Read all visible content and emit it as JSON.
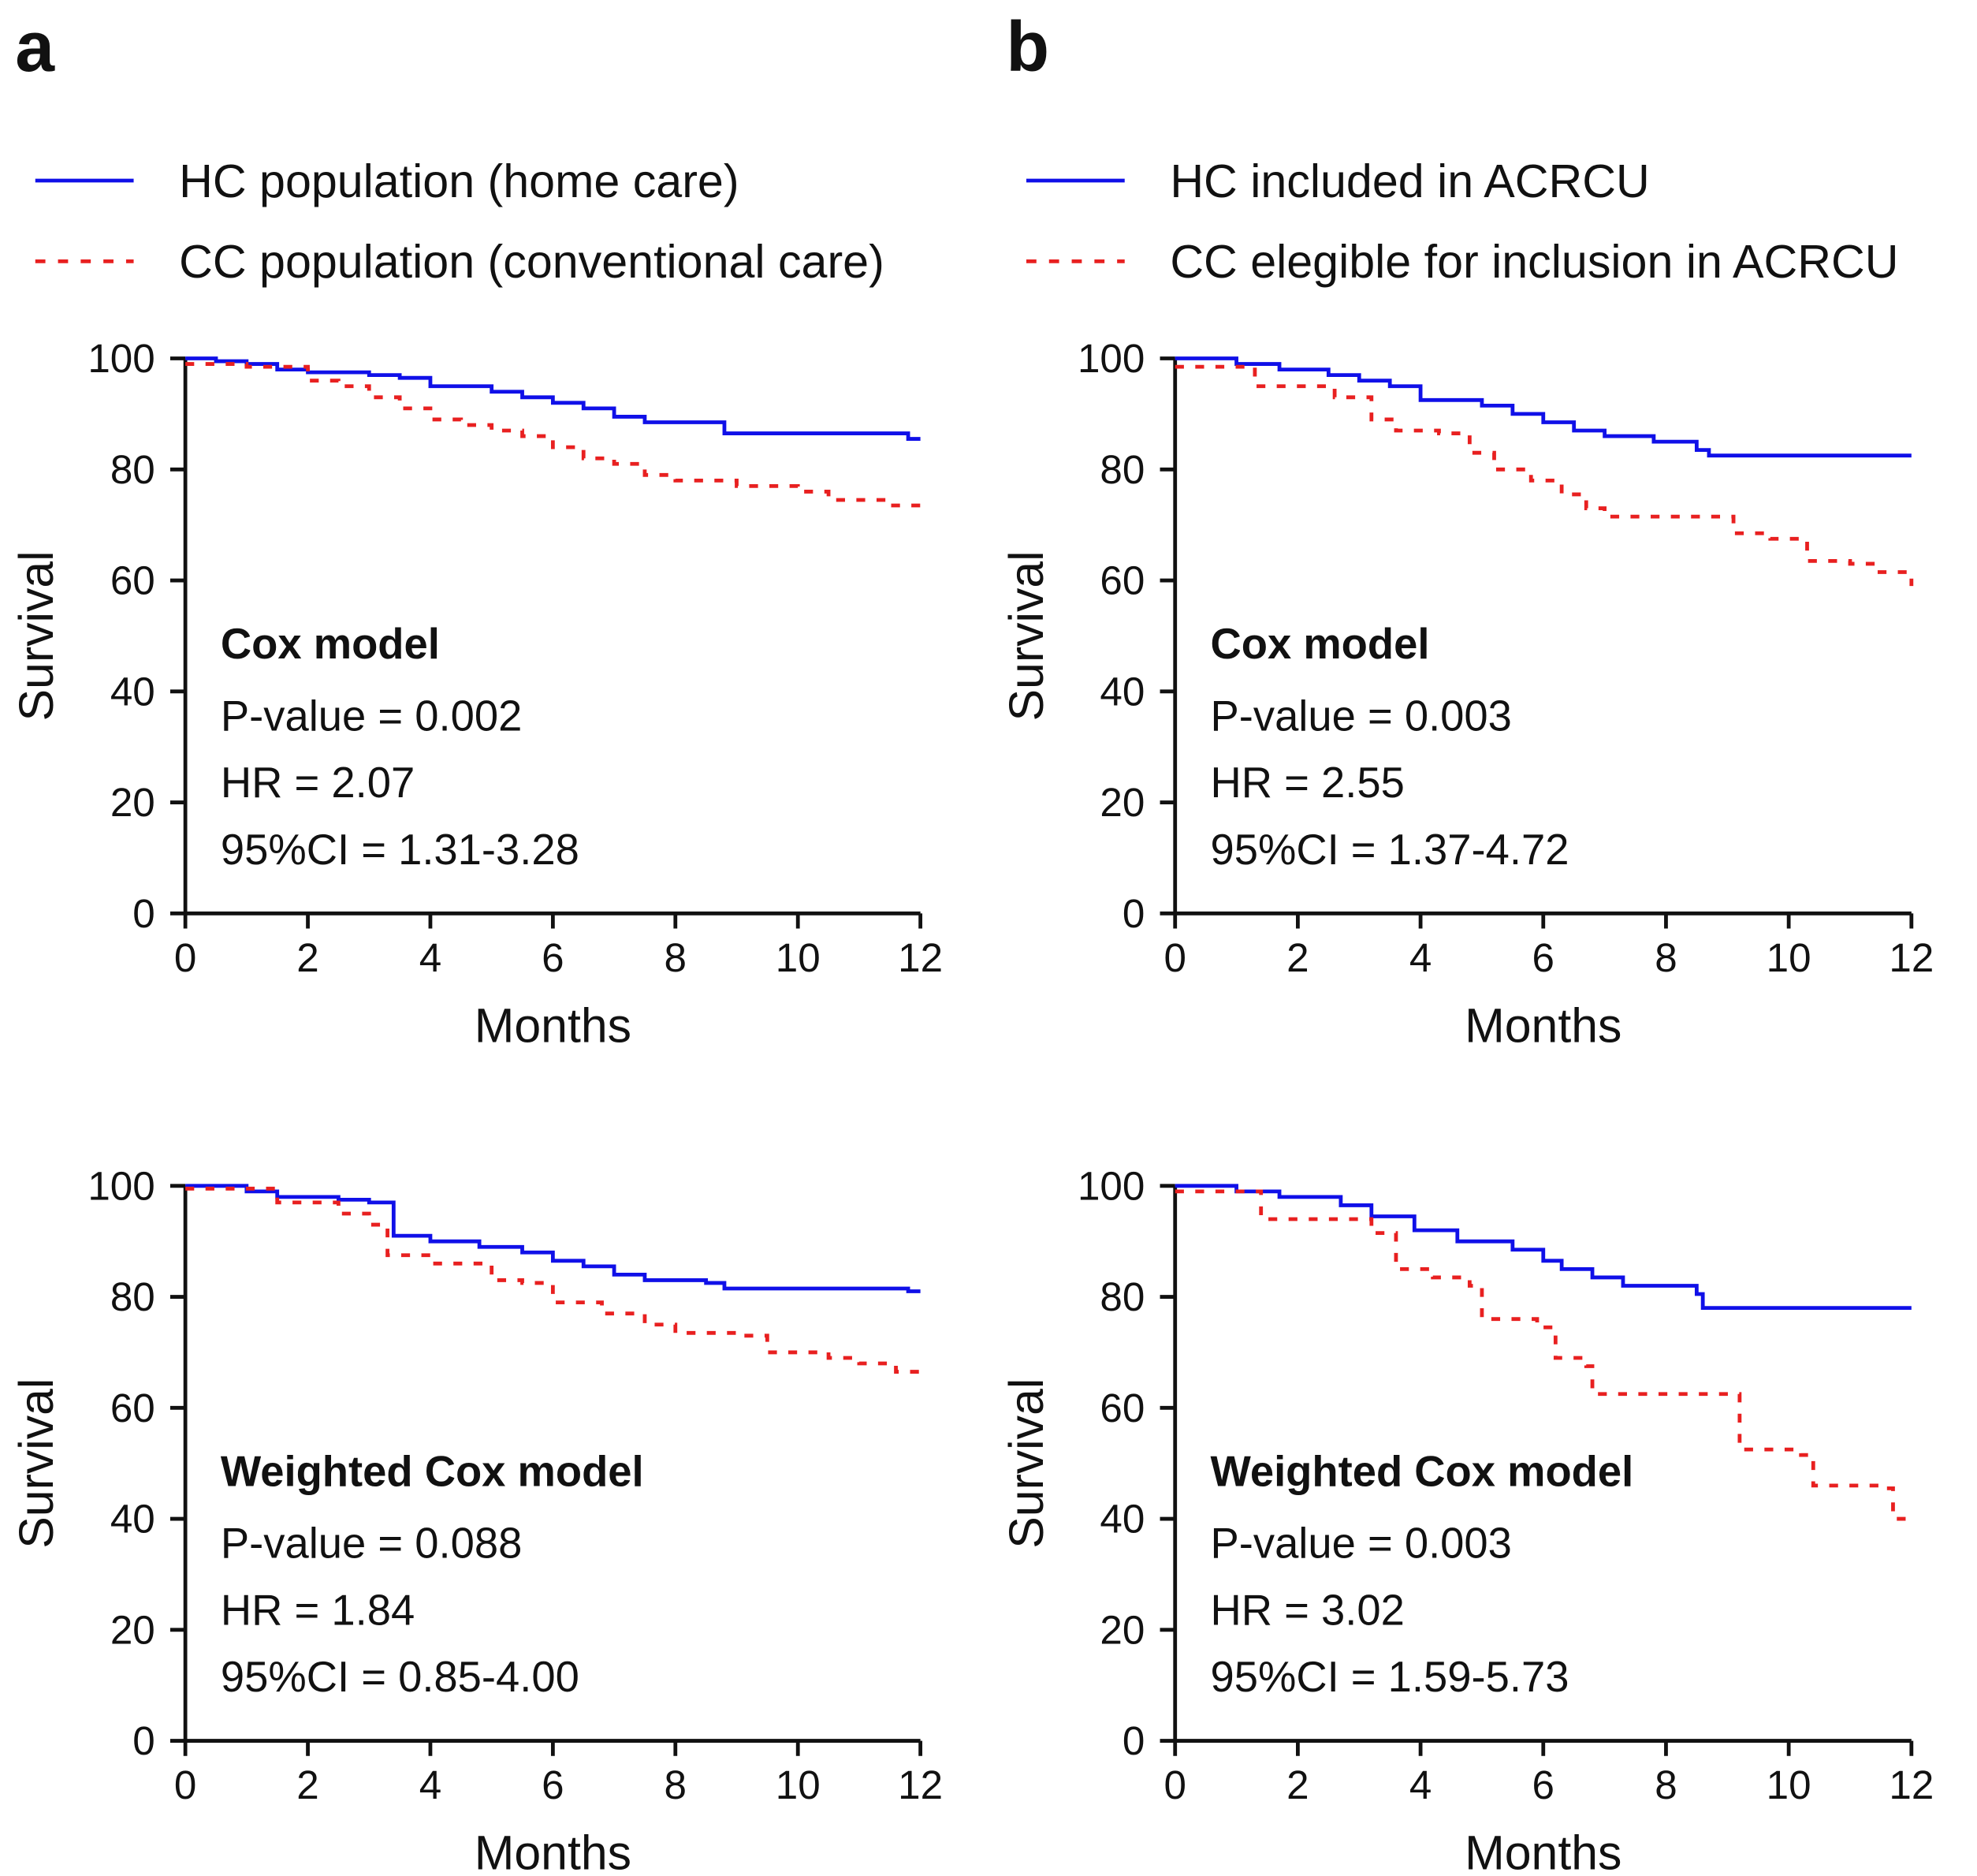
{
  "colors": {
    "hc": "#1010e8",
    "cc": "#e82020",
    "axis": "#111111"
  },
  "panels": [
    {
      "label": "a",
      "legend": [
        "HC population (home care)",
        "CC population (conventional care)"
      ]
    },
    {
      "label": "b",
      "legend": [
        "HC included in ACRCU",
        "CC elegible for inclusion in ACRCU"
      ]
    }
  ],
  "chart_data": [
    {
      "type": "line",
      "panel": "a",
      "xlabel": "Months",
      "ylabel": "Survival",
      "xlim": [
        0,
        12
      ],
      "ylim": [
        0,
        100
      ],
      "xticks": [
        "0",
        "2",
        "4",
        "6",
        "8",
        "10",
        "12"
      ],
      "yticks": [
        "0",
        "20",
        "40",
        "60",
        "80",
        "100"
      ],
      "annotation": {
        "title": "Cox model",
        "lines": [
          "P-value = 0.002",
          "HR = 2.07",
          "95%CI = 1.31-3.28"
        ]
      },
      "series": [
        {
          "name": "HC population (home care)",
          "style": "solid",
          "points": [
            [
              0,
              100
            ],
            [
              0.5,
              99.5
            ],
            [
              1,
              99
            ],
            [
              1.5,
              98
            ],
            [
              2,
              97.5
            ],
            [
              3,
              97
            ],
            [
              3.5,
              96.5
            ],
            [
              4,
              95
            ],
            [
              5,
              94
            ],
            [
              5.5,
              93
            ],
            [
              6,
              92
            ],
            [
              6.5,
              91
            ],
            [
              7,
              89.5
            ],
            [
              7.5,
              88.5
            ],
            [
              8.8,
              86.5
            ],
            [
              11.8,
              85.5
            ],
            [
              12,
              85.5
            ]
          ]
        },
        {
          "name": "CC population (conventional care)",
          "style": "dashed",
          "points": [
            [
              0,
              99
            ],
            [
              1,
              98.5
            ],
            [
              2,
              96
            ],
            [
              2.5,
              95
            ],
            [
              3,
              93
            ],
            [
              3.5,
              91
            ],
            [
              4,
              89
            ],
            [
              4.5,
              88
            ],
            [
              5,
              87
            ],
            [
              5.5,
              86
            ],
            [
              6,
              84
            ],
            [
              6.5,
              82
            ],
            [
              7,
              81
            ],
            [
              7.5,
              79
            ],
            [
              8,
              78
            ],
            [
              9,
              77
            ],
            [
              10,
              76
            ],
            [
              10.5,
              74.5
            ],
            [
              11.5,
              73.5
            ],
            [
              12,
              72.5
            ]
          ]
        }
      ]
    },
    {
      "type": "line",
      "panel": "b",
      "xlabel": "Months",
      "ylabel": "Survival",
      "xlim": [
        0,
        12
      ],
      "ylim": [
        0,
        100
      ],
      "xticks": [
        "0",
        "2",
        "4",
        "6",
        "8",
        "10",
        "12"
      ],
      "yticks": [
        "0",
        "20",
        "40",
        "60",
        "80",
        "100"
      ],
      "annotation": {
        "title": "Cox model",
        "lines": [
          "P-value = 0.003",
          "HR = 2.55",
          "95%CI = 1.37-4.72"
        ]
      },
      "series": [
        {
          "name": "HC included in ACRCU",
          "style": "solid",
          "points": [
            [
              0,
              100
            ],
            [
              1,
              99
            ],
            [
              1.7,
              98
            ],
            [
              2.5,
              97
            ],
            [
              3,
              96
            ],
            [
              3.5,
              95
            ],
            [
              4,
              92.5
            ],
            [
              5,
              91.5
            ],
            [
              5.5,
              90
            ],
            [
              6,
              88.5
            ],
            [
              6.5,
              87
            ],
            [
              7,
              86
            ],
            [
              7.8,
              85
            ],
            [
              8.5,
              83.5
            ],
            [
              8.7,
              82.5
            ],
            [
              12,
              82.5
            ]
          ]
        },
        {
          "name": "CC elegible for inclusion in ACRCU",
          "style": "dashed",
          "points": [
            [
              0,
              98.5
            ],
            [
              1.3,
              95
            ],
            [
              2.6,
              93
            ],
            [
              3.2,
              89
            ],
            [
              3.6,
              87
            ],
            [
              4.3,
              86.5
            ],
            [
              4.8,
              83
            ],
            [
              5.2,
              80
            ],
            [
              5.8,
              78
            ],
            [
              6.3,
              75.5
            ],
            [
              6.7,
              73
            ],
            [
              7,
              71.5
            ],
            [
              8.8,
              71.5
            ],
            [
              9.1,
              68.5
            ],
            [
              9.7,
              67.5
            ],
            [
              10.3,
              63.5
            ],
            [
              11,
              63
            ],
            [
              11.4,
              61.5
            ],
            [
              12,
              59
            ]
          ]
        }
      ]
    },
    {
      "type": "line",
      "panel": "a",
      "xlabel": "Months",
      "ylabel": "Survival",
      "xlim": [
        0,
        12
      ],
      "ylim": [
        0,
        100
      ],
      "xticks": [
        "0",
        "2",
        "4",
        "6",
        "8",
        "10",
        "12"
      ],
      "yticks": [
        "0",
        "20",
        "40",
        "60",
        "80",
        "100"
      ],
      "annotation": {
        "title": "Weighted Cox model",
        "lines": [
          "P-value = 0.088",
          "HR = 1.84",
          "95%CI = 0.85-4.00"
        ]
      },
      "series": [
        {
          "name": "HC population (home care)",
          "style": "solid",
          "points": [
            [
              0,
              100
            ],
            [
              1,
              99
            ],
            [
              1.5,
              98
            ],
            [
              2.5,
              97.5
            ],
            [
              3,
              97
            ],
            [
              3.4,
              91
            ],
            [
              4,
              90
            ],
            [
              4.8,
              89
            ],
            [
              5.5,
              88
            ],
            [
              6,
              86.5
            ],
            [
              6.5,
              85.5
            ],
            [
              7,
              84
            ],
            [
              7.5,
              83
            ],
            [
              8.5,
              82.5
            ],
            [
              8.8,
              81.5
            ],
            [
              11.8,
              81
            ],
            [
              12,
              81
            ]
          ]
        },
        {
          "name": "CC population (conventional care)",
          "style": "dashed",
          "points": [
            [
              0,
              99.5
            ],
            [
              1.5,
              97
            ],
            [
              2.5,
              95
            ],
            [
              3,
              93
            ],
            [
              3.3,
              87.5
            ],
            [
              4,
              86
            ],
            [
              5,
              83
            ],
            [
              5.5,
              82.5
            ],
            [
              6,
              79
            ],
            [
              6.8,
              77
            ],
            [
              7.5,
              75
            ],
            [
              8,
              73.5
            ],
            [
              9,
              73
            ],
            [
              9.5,
              70
            ],
            [
              10.5,
              69
            ],
            [
              11,
              68
            ],
            [
              11.6,
              66.5
            ],
            [
              12,
              65.5
            ]
          ]
        }
      ]
    },
    {
      "type": "line",
      "panel": "b",
      "xlabel": "Months",
      "ylabel": "Survival",
      "xlim": [
        0,
        12
      ],
      "ylim": [
        0,
        100
      ],
      "xticks": [
        "0",
        "2",
        "4",
        "6",
        "8",
        "10",
        "12"
      ],
      "yticks": [
        "0",
        "20",
        "40",
        "60",
        "80",
        "100"
      ],
      "annotation": {
        "title": "Weighted Cox model",
        "lines": [
          "P-value = 0.003",
          "HR = 3.02",
          "95%CI = 1.59-5.73"
        ]
      },
      "series": [
        {
          "name": "HC included in ACRCU",
          "style": "solid",
          "points": [
            [
              0,
              100
            ],
            [
              1,
              99
            ],
            [
              1.7,
              98
            ],
            [
              2.7,
              96.5
            ],
            [
              3.2,
              94.5
            ],
            [
              3.9,
              92
            ],
            [
              4.6,
              90
            ],
            [
              5.5,
              88.5
            ],
            [
              6,
              86.5
            ],
            [
              6.3,
              85
            ],
            [
              6.8,
              83.5
            ],
            [
              7.3,
              82
            ],
            [
              8.5,
              80.5
            ],
            [
              8.6,
              78
            ],
            [
              12,
              78
            ]
          ]
        },
        {
          "name": "CC elegible for inclusion in ACRCU",
          "style": "dashed",
          "points": [
            [
              0,
              99
            ],
            [
              0.8,
              99
            ],
            [
              1.4,
              94
            ],
            [
              2.5,
              94
            ],
            [
              3.2,
              91.5
            ],
            [
              3.6,
              85
            ],
            [
              4.2,
              83.5
            ],
            [
              4.8,
              82
            ],
            [
              5,
              76
            ],
            [
              5.9,
              74.5
            ],
            [
              6.2,
              69
            ],
            [
              6.7,
              67.5
            ],
            [
              6.8,
              62.5
            ],
            [
              8.9,
              62.5
            ],
            [
              9.2,
              52.5
            ],
            [
              10.2,
              51.5
            ],
            [
              10.4,
              46
            ],
            [
              11.6,
              45.5
            ],
            [
              11.7,
              40
            ],
            [
              12,
              39
            ]
          ]
        }
      ]
    }
  ]
}
